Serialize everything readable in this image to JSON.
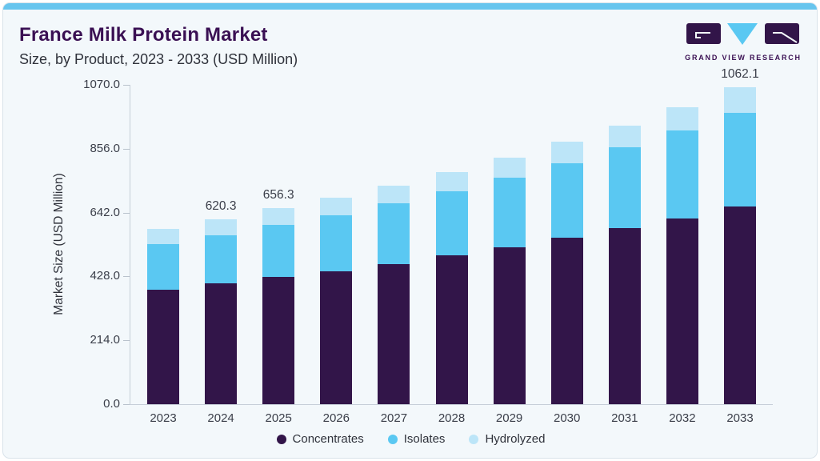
{
  "header": {
    "title": "France Milk Protein Market",
    "subtitle": "Size, by Product, 2023 - 2033 (USD Million)"
  },
  "logo": {
    "text": "GRAND VIEW RESEARCH"
  },
  "colors": {
    "concentrates": "#321549",
    "isolates": "#5ac8f2",
    "hydrolyzed": "#bce5f8",
    "accent_strip": "#67c5ee",
    "card_bg": "#f3f8fb",
    "title": "#3a1053",
    "axis_line": "#c6ced8",
    "text": "#3a3e49"
  },
  "chart_data": {
    "type": "bar",
    "stacked": true,
    "title": "France Milk Protein Market Size, by Product, 2023 - 2033 (USD Million)",
    "xlabel": "",
    "ylabel": "Market Size (USD Million)",
    "ylim": [
      0,
      1070
    ],
    "grid": false,
    "legend_position": "bottom",
    "categories": [
      "2023",
      "2024",
      "2025",
      "2026",
      "2027",
      "2028",
      "2029",
      "2030",
      "2031",
      "2032",
      "2033"
    ],
    "series": [
      {
        "name": "Concentrates",
        "color_key": "concentrates",
        "values": [
          383,
          406,
          426,
          445,
          470,
          498,
          525,
          557,
          589,
          623,
          663
        ]
      },
      {
        "name": "Isolates",
        "color_key": "isolates",
        "values": [
          154,
          160,
          174,
          188,
          203,
          216,
          234,
          251,
          271,
          293,
          313
        ]
      },
      {
        "name": "Hydrolyzed",
        "color_key": "hydrolyzed",
        "values": [
          49,
          54.3,
          56.3,
          58.4,
          58.5,
          63.3,
          67.1,
          70.7,
          73.8,
          79.6,
          86.1
        ]
      }
    ],
    "totals": [
      586,
      620.3,
      656.3,
      691.4,
      731.5,
      777.3,
      826.1,
      878.7,
      933.8,
      995.6,
      1062.1
    ],
    "bar_labels": [
      "",
      "620.3",
      "656.3",
      "",
      "",
      "",
      "",
      "",
      "",
      "",
      "1062.1"
    ],
    "yticks": [
      0,
      214,
      428,
      642,
      856,
      1070
    ],
    "ytick_labels": [
      "0.0",
      "214.0",
      "428.0",
      "642.0",
      "856.0",
      "1070.0"
    ],
    "legend": [
      "Concentrates",
      "Isolates",
      "Hydrolyzed"
    ]
  }
}
